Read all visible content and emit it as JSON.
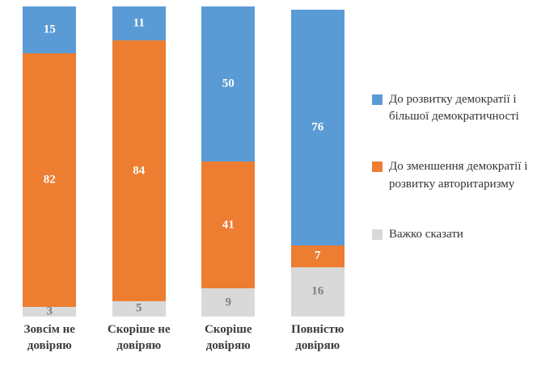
{
  "chart_data": {
    "type": "bar",
    "variant": "stacked-column-100",
    "title": "",
    "xlabel": "",
    "ylabel": "",
    "ylim": [
      0,
      100
    ],
    "grid": false,
    "legend_position": "right",
    "categories": [
      "Зовсім не довіряю",
      "Скоріше не довіряю",
      "Скоріше довіряю",
      "Повністю довіряю"
    ],
    "series": [
      {
        "name": "До розвитку демократії і більшої демократичності",
        "color": "#5B9BD5",
        "label_color": "#FFFFFF",
        "values": [
          15,
          11,
          50,
          76
        ]
      },
      {
        "name": "До зменшення демократії і розвитку авторитаризму",
        "color": "#ED7D31",
        "label_color": "#FFFFFF",
        "values": [
          82,
          84,
          41,
          7
        ]
      },
      {
        "name": "Важко сказати",
        "color": "#D9D9D9",
        "label_color": "#7F7F7F",
        "values": [
          3,
          5,
          9,
          16
        ]
      }
    ],
    "stack_order_top_to_bottom": [
      "До розвитку демократії і більшої демократичності",
      "До зменшення демократії і розвитку авторитаризму",
      "Важко сказати"
    ]
  }
}
